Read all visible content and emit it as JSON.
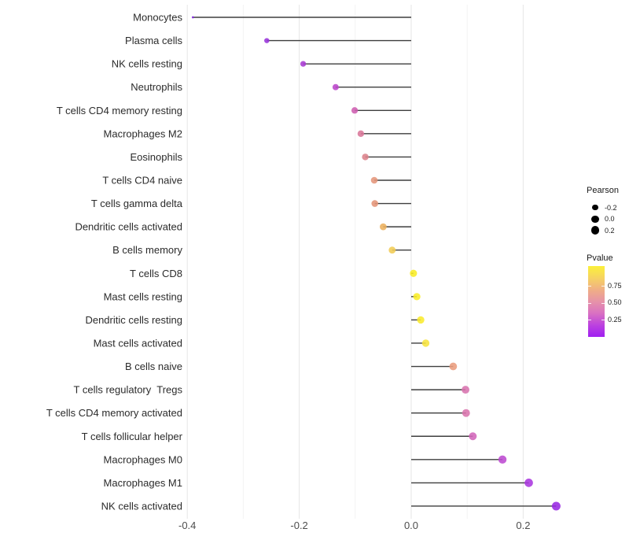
{
  "chart_data": {
    "type": "lollipop",
    "title": "",
    "xlabel": "",
    "ylabel": "",
    "x_axis": {
      "tick_labels": [
        "-0.4",
        "-0.2",
        "0.0",
        "0.2"
      ],
      "tick_values": [
        -0.4,
        -0.2,
        0.0,
        0.2
      ],
      "minor_tick_values": [
        -0.3,
        -0.1,
        0.1
      ],
      "range": [
        -0.42,
        0.295
      ],
      "grid": "on"
    },
    "baseline_value": 0.0,
    "rows": [
      {
        "label": "Monocytes",
        "pearson": -0.39,
        "color": "#8226DF"
      },
      {
        "label": "Plasma cells",
        "pearson": -0.258,
        "color": "#9934DB"
      },
      {
        "label": "NK cells resting",
        "pearson": -0.193,
        "color": "#A83BD3"
      },
      {
        "label": "Neutrophils",
        "pearson": -0.135,
        "color": "#BB45CB"
      },
      {
        "label": "T cells CD4 memory resting",
        "pearson": -0.101,
        "color": "#CE5DB1"
      },
      {
        "label": "Macrophages M2",
        "pearson": -0.09,
        "color": "#D97699"
      },
      {
        "label": "Eosinophils",
        "pearson": -0.082,
        "color": "#DC828B"
      },
      {
        "label": "T cells CD4 naive",
        "pearson": -0.066,
        "color": "#E5967B"
      },
      {
        "label": "T cells gamma delta",
        "pearson": -0.065,
        "color": "#E49478"
      },
      {
        "label": "Dendritic cells activated",
        "pearson": -0.05,
        "color": "#ECB05E"
      },
      {
        "label": "B cells memory",
        "pearson": -0.034,
        "color": "#F1CC55"
      },
      {
        "label": "T cells CD8",
        "pearson": 0.004,
        "color": "#F8EC25"
      },
      {
        "label": "Mast cells resting",
        "pearson": 0.01,
        "color": "#F9ED28"
      },
      {
        "label": "Dendritic cells resting",
        "pearson": 0.017,
        "color": "#F9EB2E"
      },
      {
        "label": "Mast cells activated",
        "pearson": 0.026,
        "color": "#F7E43D"
      },
      {
        "label": "B cells naive",
        "pearson": 0.075,
        "color": "#E99C7D"
      },
      {
        "label": "T cells regulatory  Tregs",
        "pearson": 0.097,
        "color": "#D873AE"
      },
      {
        "label": "T cells CD4 memory activated",
        "pearson": 0.098,
        "color": "#D974AD"
      },
      {
        "label": "T cells follicular helper",
        "pearson": 0.11,
        "color": "#D165BA"
      },
      {
        "label": "Macrophages M0",
        "pearson": 0.163,
        "color": "#BD4AD1"
      },
      {
        "label": "Macrophages M1",
        "pearson": 0.21,
        "color": "#AA37DF"
      },
      {
        "label": "NK cells activated",
        "pearson": 0.259,
        "color": "#9929E3"
      }
    ]
  },
  "legend": {
    "pearson": {
      "title": "Pearson",
      "dot_color": "#000000",
      "items": [
        {
          "label": "-0.2",
          "value": -0.2
        },
        {
          "label": "0.0",
          "value": 0.0
        },
        {
          "label": "0.2",
          "value": 0.2
        }
      ]
    },
    "pvalue": {
      "title": "Pvalue",
      "ticks": [
        {
          "label": "0.75"
        },
        {
          "label": "0.50"
        },
        {
          "label": "0.25"
        }
      ],
      "gradient_top_to_bottom": [
        "#FBF03A",
        "#F6D362",
        "#F0AF85",
        "#E693A8",
        "#D971C2",
        "#BC42DF",
        "#A01FF1"
      ]
    }
  },
  "colors": {
    "stem": "#3E3E3E",
    "y_label_text": "#2B2B2B",
    "x_tick_text": "#4D4D4D",
    "grid_major": "#E8E8E8",
    "grid_minor": "#F3F3F3",
    "background": "#FFFFFF"
  }
}
